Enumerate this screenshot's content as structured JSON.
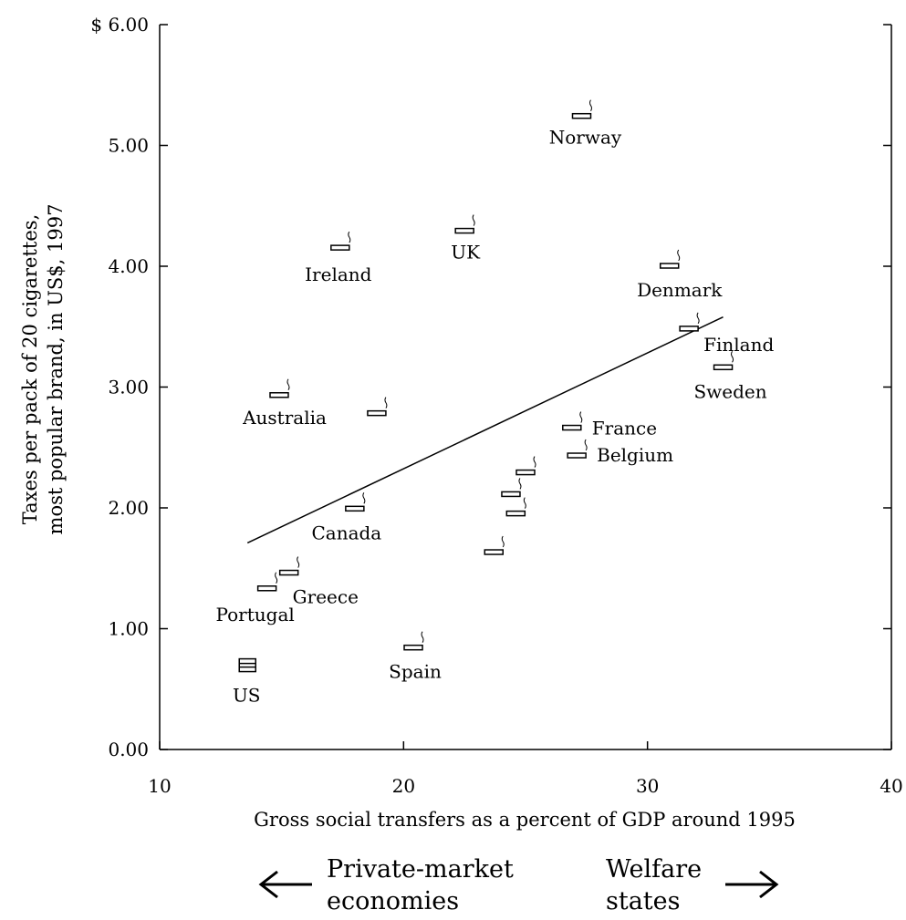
{
  "chart_data": {
    "type": "scatter",
    "xlabel": "Gross social transfers as a percent of GDP around 1995",
    "ylabel_lines": [
      "Taxes per pack of 20 cigarettes,",
      "most popular brand, in US$, 1997"
    ],
    "xlim": [
      10,
      40
    ],
    "ylim": [
      0,
      6
    ],
    "x_ticks": [
      {
        "value": 10,
        "label": "10"
      },
      {
        "value": 20,
        "label": "20"
      },
      {
        "value": 30,
        "label": "30"
      },
      {
        "value": 40,
        "label": "40"
      }
    ],
    "y_ticks": [
      {
        "value": 0,
        "label": "0.00"
      },
      {
        "value": 1,
        "label": "1.00"
      },
      {
        "value": 2,
        "label": "2.00"
      },
      {
        "value": 3,
        "label": "3.00"
      },
      {
        "value": 4,
        "label": "4.00"
      },
      {
        "value": 5,
        "label": "5.00"
      },
      {
        "value": 6,
        "label": "$ 6.00"
      }
    ],
    "grid": false,
    "points": [
      {
        "label": "Norway",
        "x": 27.3,
        "y": 5.24
      },
      {
        "label": "UK",
        "x": 22.5,
        "y": 4.29
      },
      {
        "label": "Ireland",
        "x": 17.4,
        "y": 4.15
      },
      {
        "label": "Denmark",
        "x": 30.9,
        "y": 4.0
      },
      {
        "label": "Finland",
        "x": 31.7,
        "y": 3.48
      },
      {
        "label": "Sweden",
        "x": 33.1,
        "y": 3.16
      },
      {
        "label": "Australia",
        "x": 14.9,
        "y": 2.93
      },
      {
        "label": "",
        "x": 18.9,
        "y": 2.78
      },
      {
        "label": "France",
        "x": 26.9,
        "y": 2.66
      },
      {
        "label": "Belgium",
        "x": 27.1,
        "y": 2.43
      },
      {
        "label": "",
        "x": 25.0,
        "y": 2.29
      },
      {
        "label": "",
        "x": 24.4,
        "y": 2.11
      },
      {
        "label": "",
        "x": 24.6,
        "y": 1.95
      },
      {
        "label": "Canada",
        "x": 18.0,
        "y": 1.99
      },
      {
        "label": "",
        "x": 23.7,
        "y": 1.63
      },
      {
        "label": "Greece",
        "x": 15.3,
        "y": 1.46
      },
      {
        "label": "Portugal",
        "x": 14.4,
        "y": 1.33
      },
      {
        "label": "Spain",
        "x": 20.4,
        "y": 0.84
      },
      {
        "label": "US",
        "x": 13.6,
        "y": 0.69
      }
    ],
    "trend_line": {
      "x": [
        13.6,
        33.1
      ],
      "y": [
        1.71,
        3.58
      ]
    }
  },
  "footer": {
    "left_line1": "Private-market",
    "left_line2": "economies",
    "right_line1": "Welfare",
    "right_line2": "states"
  }
}
